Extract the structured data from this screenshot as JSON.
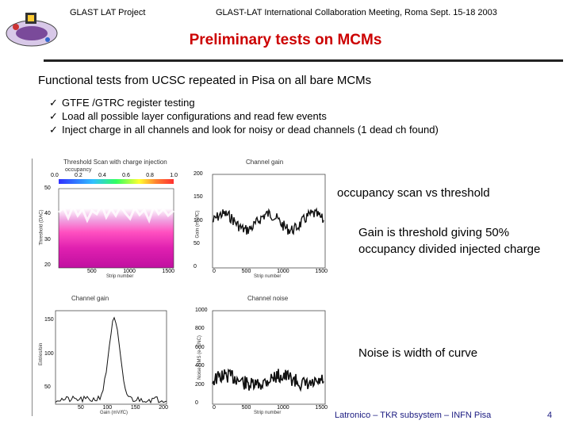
{
  "header": {
    "left": "GLAST LAT Project",
    "right": "GLAST-LAT International Collaboration Meeting, Roma Sept. 15-18 2003"
  },
  "title": "Preliminary tests on MCMs",
  "subtitle": "Functional tests from UCSC repeated in Pisa on all bare MCMs",
  "bullets": [
    "GTFE /GTRC register testing",
    "Load all possible layer configurations and read few events",
    "Inject charge in all channels and look for noisy or dead channels (1 dead ch found)"
  ],
  "notes": {
    "occupancy": "occupancy scan vs threshold",
    "gain": "Gain is threshold giving 50% occupancy divided injected charge",
    "noise": "Noise is width of curve"
  },
  "plots": {
    "threshold": {
      "title": "Threshold Scan with charge injection",
      "color_label": "occupancy",
      "color_ticks": [
        "0.0",
        "0.2",
        "0.4",
        "0.6",
        "0.8",
        "1.0"
      ],
      "y_ticks": [
        "50",
        "40",
        "30",
        "20"
      ],
      "x_ticks": [
        "500",
        "1000",
        "1500"
      ],
      "xlabel": "Strip number",
      "ylabel": "Threshold (DAC)"
    },
    "gain": {
      "title": "Channel gain",
      "y_ticks": [
        "200",
        "150",
        "100",
        "50",
        "0"
      ],
      "x_ticks": [
        "0",
        "500",
        "1000",
        "1500"
      ],
      "xlabel": "Strip number",
      "ylabel": "Gain (mV/fC)"
    },
    "gain_hist": {
      "title": "Channel gain",
      "y_ticks": [
        "150",
        "100",
        "50"
      ],
      "x_ticks": [
        "50",
        "100",
        "150",
        "200"
      ],
      "xlabel": "Gain (mV/fC)",
      "ylabel": "Entries/bin"
    },
    "noise": {
      "title": "Channel noise",
      "y_ticks": [
        "1000",
        "800",
        "600",
        "400",
        "200",
        "0"
      ],
      "x_ticks": [
        "0",
        "500",
        "1000",
        "1500"
      ],
      "xlabel": "Strip number",
      "ylabel": "Noise RMS (e- ENC)"
    }
  },
  "footer": "Latronico – TKR subsystem – INFN Pisa",
  "page_number": "4",
  "colors": {
    "title": "#cc0000",
    "footer": "#1a1a80"
  }
}
